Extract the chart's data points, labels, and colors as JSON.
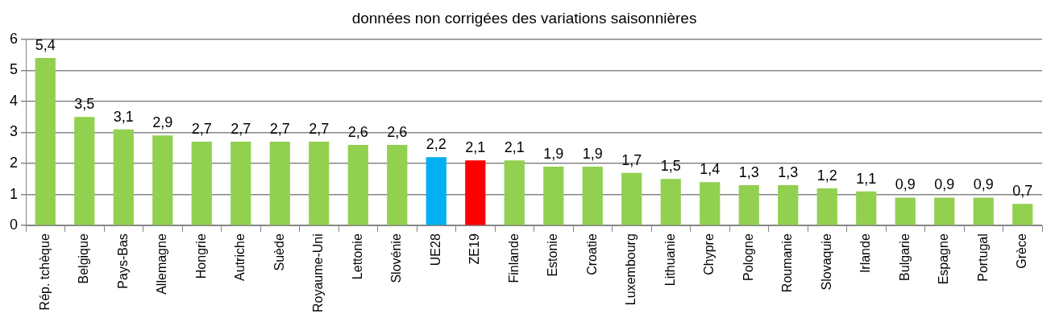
{
  "chart_data": {
    "type": "bar",
    "title": "données non corrigées des variations saisonnières",
    "categories": [
      "Rép. tchèque",
      "Belgique",
      "Pays-Bas",
      "Allemagne",
      "Hongrie",
      "Autriche",
      "Suède",
      "Royaume-Uni",
      "Lettonie",
      "Slovénie",
      "UE28",
      "ZE19",
      "Finlande",
      "Estonie",
      "Croatie",
      "Luxembourg",
      "Lithuanie",
      "Chypre",
      "Pologne",
      "Roumanie",
      "Slovaquie",
      "Irlande",
      "Bulgarie",
      "Espagne",
      "Portugal",
      "Grèce"
    ],
    "values": [
      5.4,
      3.5,
      3.1,
      2.9,
      2.7,
      2.7,
      2.7,
      2.7,
      2.6,
      2.6,
      2.2,
      2.1,
      2.1,
      1.9,
      1.9,
      1.7,
      1.5,
      1.4,
      1.3,
      1.3,
      1.2,
      1.1,
      0.9,
      0.9,
      0.9,
      0.7
    ],
    "value_labels": [
      "5,4",
      "3,5",
      "3,1",
      "2,9",
      "2,7",
      "2,7",
      "2,7",
      "2,7",
      "2,6",
      "2,6",
      "2,2",
      "2,1",
      "2,1",
      "1,9",
      "1,9",
      "1,7",
      "1,5",
      "1,4",
      "1,3",
      "1,3",
      "1,2",
      "1,1",
      "0,9",
      "0,9",
      "0,9",
      "0,7"
    ],
    "colors": [
      "#92d050",
      "#92d050",
      "#92d050",
      "#92d050",
      "#92d050",
      "#92d050",
      "#92d050",
      "#92d050",
      "#92d050",
      "#92d050",
      "#00b0f0",
      "#ff0000",
      "#92d050",
      "#92d050",
      "#92d050",
      "#92d050",
      "#92d050",
      "#92d050",
      "#92d050",
      "#92d050",
      "#92d050",
      "#92d050",
      "#92d050",
      "#92d050",
      "#92d050",
      "#92d050"
    ],
    "ylim": [
      0,
      6
    ],
    "yticks": [
      0,
      1,
      2,
      3,
      4,
      5,
      6
    ],
    "grid": "y"
  }
}
